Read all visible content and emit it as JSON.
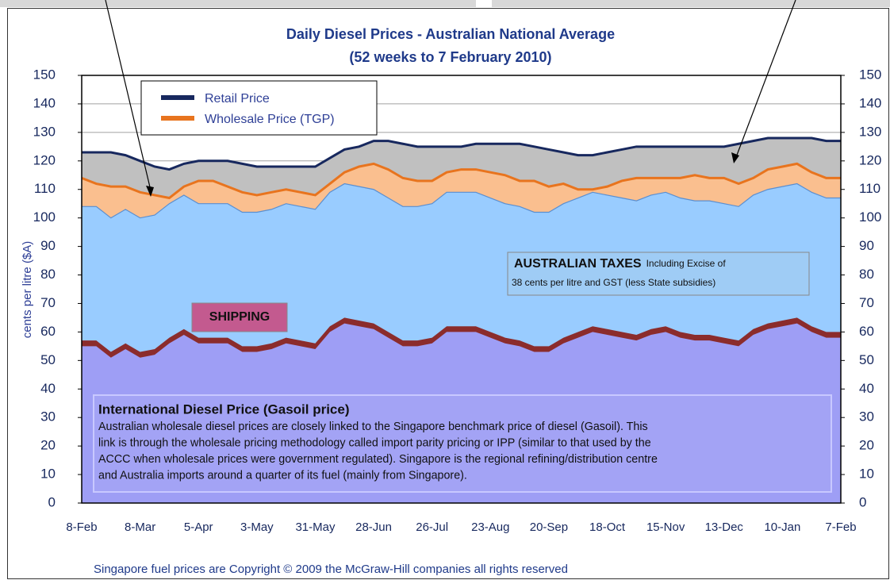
{
  "chart_data": {
    "type": "area",
    "title": "Daily Diesel Prices - Australian National Average",
    "subtitle": "(52 weeks to 7 February 2010)",
    "y_label": "cents per litre ($A)",
    "categories": [
      "8-Feb",
      null,
      null,
      null,
      "8-Mar",
      null,
      null,
      null,
      "5-Apr",
      null,
      null,
      null,
      "3-May",
      null,
      null,
      null,
      "31-May",
      null,
      null,
      null,
      "28-Jun",
      null,
      null,
      null,
      "26-Jul",
      null,
      null,
      null,
      "23-Aug",
      null,
      null,
      null,
      "20-Sep",
      null,
      null,
      null,
      "18-Oct",
      null,
      null,
      null,
      "15-Nov",
      null,
      null,
      null,
      "13-Dec",
      null,
      null,
      null,
      "10-Jan",
      null,
      null,
      null,
      "7-Feb"
    ],
    "series": [
      {
        "name": "Retail Price",
        "color": "#17285e",
        "fill": "#c0c0c0",
        "values": [
          123,
          123,
          123,
          122,
          120,
          118,
          117,
          119,
          120,
          120,
          120,
          119,
          118,
          118,
          118,
          118,
          118,
          121,
          124,
          125,
          127,
          127,
          126,
          125,
          125,
          125,
          125,
          126,
          126,
          126,
          126,
          125,
          124,
          123,
          122,
          122,
          123,
          124,
          125,
          125,
          125,
          125,
          125,
          125,
          125,
          126,
          127,
          128,
          128,
          128,
          128,
          127,
          127
        ]
      },
      {
        "name": "Wholesale Price (TGP)",
        "color": "#e8741e",
        "fill": "#fabf8f",
        "values": [
          114,
          112,
          111,
          111,
          109,
          108,
          107,
          111,
          113,
          113,
          111,
          109,
          108,
          109,
          110,
          109,
          108,
          112,
          116,
          118,
          119,
          117,
          114,
          113,
          113,
          116,
          117,
          117,
          116,
          115,
          113,
          113,
          111,
          112,
          110,
          110,
          111,
          113,
          114,
          114,
          114,
          114,
          115,
          114,
          114,
          112,
          114,
          117,
          118,
          119,
          116,
          114,
          114
        ]
      }
    ],
    "stack": [
      {
        "color": "#9e9ef5",
        "values": [
          55,
          55,
          51,
          54,
          51,
          52,
          56,
          59,
          56,
          56,
          56,
          53,
          53,
          54,
          56,
          55,
          54,
          60,
          63,
          62,
          61,
          58,
          55,
          55,
          56,
          60,
          60,
          60,
          58,
          56,
          55,
          53,
          53,
          56,
          58,
          60,
          59,
          58,
          57,
          59,
          60,
          58,
          57,
          57,
          56,
          55,
          59,
          61,
          62,
          63,
          60,
          58,
          58
        ]
      },
      {
        "color": "#8b2c2c",
        "values": [
          2,
          2,
          2,
          2,
          2,
          2,
          2,
          2,
          2,
          2,
          2,
          2,
          2,
          2,
          2,
          2,
          2,
          2,
          2,
          2,
          2,
          2,
          2,
          2,
          2,
          2,
          2,
          2,
          2,
          2,
          2,
          2,
          2,
          2,
          2,
          2,
          2,
          2,
          2,
          2,
          2,
          2,
          2,
          2,
          2,
          2,
          2,
          2,
          2,
          2,
          2,
          2,
          2
        ]
      },
      {
        "color": "#99ccff",
        "values": [
          47,
          47,
          47,
          47,
          47,
          47,
          47,
          47,
          47,
          47,
          47,
          47,
          47,
          47,
          47,
          47,
          47,
          47,
          47,
          47,
          47,
          47,
          47,
          47,
          47,
          47,
          47,
          47,
          47,
          47,
          47,
          47,
          47,
          47,
          47,
          47,
          47,
          47,
          47,
          47,
          47,
          47,
          47,
          47,
          47,
          47,
          47,
          47,
          47,
          47,
          47,
          47,
          47
        ]
      }
    ],
    "ylim": [
      0,
      150
    ],
    "yticks": [
      0,
      10,
      20,
      30,
      40,
      50,
      60,
      70,
      80,
      90,
      100,
      110,
      120,
      130,
      140,
      150
    ],
    "y2lim": [
      0,
      150
    ],
    "y2ticks": [
      0,
      10,
      20,
      30,
      40,
      50,
      60,
      70,
      80,
      90,
      100,
      110,
      120,
      130,
      140,
      150
    ],
    "grid": true,
    "annotations": {
      "shipping": "SHIPPING",
      "taxes_title": "AUSTRALIAN TAXES",
      "taxes_note": "Including Excise of",
      "taxes_note2": "38 cents per litre and GST (less State subsidies)",
      "gasoil_title": "International Diesel Price (Gasoil price)",
      "gasoil_text": [
        "Australian wholesale diesel prices are closely linked to the Singapore benchmark price of diesel (Gasoil).   This",
        "link is through the wholesale pricing methodology called import parity pricing or IPP (similar to that used by the",
        "ACCC when wholesale prices were government regulated). Singapore is the regional refining/distribution centre",
        "and Australia imports around a quarter of its fuel (mainly from Singapore)."
      ]
    },
    "footer": "Singapore fuel prices are Copyright © 2009 the McGraw-Hill companies all rights reserved"
  }
}
